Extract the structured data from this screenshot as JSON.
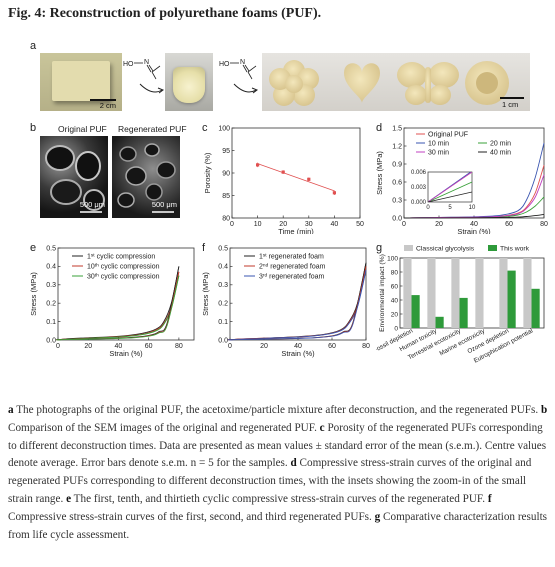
{
  "figure_title": "Fig. 4: Reconstruction of polyurethane foams (PUF).",
  "panel_labels": [
    "a",
    "b",
    "c",
    "d",
    "e",
    "f",
    "g"
  ],
  "panel_a": {
    "scale_bar_left": "2 cm",
    "scale_bar_right": "1 cm",
    "reagent": "HO",
    "reagent_atom": "N"
  },
  "panel_b": {
    "left_title": "Original PUF",
    "right_title": "Regenerated PUF",
    "left_scale": "500 μm",
    "right_scale": "500 μm"
  },
  "caption": [
    {
      "label": "a",
      "text": " The photographs of the original PUF, the acetoxime/particle mixture after deconstruction, and the regenerated PUFs. "
    },
    {
      "label": "b",
      "text": " Comparison of the SEM images of the original and regenerated PUF. "
    },
    {
      "label": "c",
      "text": " Porosity of the regenerated PUFs corresponding to different deconstruction times. Data are presented as mean values ± standard error of the mean (s.e.m.). Centre values denote average. Error bars denote s.e.m. n = 5 for the samples. "
    },
    {
      "label": "d",
      "text": " Compressive stress-strain curves of the original and regenerated PUFs corresponding to different deconstruction times, with the insets showing the zoom-in of the small strain range. "
    },
    {
      "label": "e",
      "text": " The first, tenth, and thirtieth cyclic compressive stress-strain curves of the regenerated PUF. "
    },
    {
      "label": "f",
      "text": " Compressive stress-strain curves of the first, second, and third regenerated PUFs. "
    },
    {
      "label": "g",
      "text": " Comparative characterization results from life cycle assessment."
    }
  ],
  "chart_data": [
    {
      "panel": "c",
      "type": "scatter",
      "xlabel": "Time (min)",
      "ylabel": "Porosity (%)",
      "xlim": [
        0,
        50
      ],
      "ylim": [
        80,
        100
      ],
      "xticks": [
        0,
        10,
        20,
        30,
        40,
        50
      ],
      "yticks": [
        80,
        85,
        90,
        95,
        100
      ],
      "x": [
        10,
        20,
        30,
        40
      ],
      "y": [
        91.8,
        90.2,
        88.6,
        85.6
      ],
      "err": [
        0.5,
        0.4,
        0.4,
        0.5
      ],
      "color": "#e05050"
    },
    {
      "panel": "d",
      "type": "line",
      "xlabel": "Strain (%)",
      "ylabel": "Stress (MPa)",
      "xlim": [
        0,
        80
      ],
      "ylim": [
        0,
        1.5
      ],
      "xticks": [
        0,
        20,
        40,
        60,
        80
      ],
      "yticks": [
        0.0,
        0.3,
        0.6,
        0.9,
        1.2,
        1.5
      ],
      "legend": [
        "Original PUF",
        "10 min",
        "20 min",
        "30 min",
        "40 min"
      ],
      "series": [
        {
          "name": "Original PUF",
          "color": "#e05050",
          "x": [
            0,
            5,
            20,
            40,
            55,
            65,
            70,
            75,
            80
          ],
          "y": [
            0,
            0.003,
            0.008,
            0.015,
            0.03,
            0.08,
            0.18,
            0.42,
            0.88
          ]
        },
        {
          "name": "10 min",
          "color": "#3a55b0",
          "x": [
            0,
            5,
            20,
            40,
            55,
            65,
            70,
            75,
            80
          ],
          "y": [
            0,
            0.004,
            0.01,
            0.02,
            0.045,
            0.12,
            0.3,
            0.68,
            1.25
          ]
        },
        {
          "name": "20 min",
          "color": "#3aa03a",
          "x": [
            0,
            5,
            20,
            40,
            55,
            65,
            70,
            75,
            80
          ],
          "y": [
            0,
            0.002,
            0.006,
            0.01,
            0.02,
            0.05,
            0.1,
            0.2,
            0.35
          ]
        },
        {
          "name": "30 min",
          "color": "#c040c0",
          "x": [
            0,
            5,
            20,
            40,
            55,
            65,
            70,
            75,
            80
          ],
          "y": [
            0,
            0.003,
            0.008,
            0.014,
            0.028,
            0.07,
            0.16,
            0.35,
            0.72
          ]
        },
        {
          "name": "40 min",
          "color": "#222222",
          "x": [
            0,
            5,
            20,
            40,
            55,
            65,
            70,
            75,
            80
          ],
          "y": [
            0,
            0.001,
            0.002,
            0.004,
            0.008,
            0.015,
            0.025,
            0.04,
            0.06
          ]
        }
      ],
      "inset": {
        "xlim": [
          0,
          10
        ],
        "ylim": [
          0,
          0.006
        ],
        "xticks": [
          0,
          5,
          10
        ],
        "yticks": [
          "0.000",
          "0.003",
          "0.006"
        ]
      }
    },
    {
      "panel": "e",
      "type": "line",
      "xlabel": "Strain (%)",
      "ylabel": "Stress (MPa)",
      "xlim": [
        0,
        90
      ],
      "ylim": [
        0,
        0.5
      ],
      "xticks": [
        0,
        20,
        40,
        60,
        80
      ],
      "yticks": [
        0.0,
        0.1,
        0.2,
        0.3,
        0.4,
        0.5
      ],
      "legend_base": [
        "1",
        "10",
        "30"
      ],
      "legend_sup": [
        "st",
        "th",
        "th"
      ],
      "legend_suffix": " cyclic compression",
      "series": [
        {
          "name": "1st cyclic compression",
          "color": "#222222",
          "x": [
            0,
            5,
            20,
            40,
            55,
            65,
            70,
            75,
            80
          ],
          "y": [
            0,
            0.006,
            0.012,
            0.02,
            0.035,
            0.06,
            0.1,
            0.2,
            0.4
          ]
        },
        {
          "name": "10th cyclic compression",
          "color": "#c0392b",
          "x": [
            0,
            5,
            20,
            40,
            55,
            65,
            70,
            75,
            80
          ],
          "y": [
            0,
            0.005,
            0.01,
            0.018,
            0.03,
            0.055,
            0.09,
            0.18,
            0.37
          ]
        },
        {
          "name": "30th cyclic compression",
          "color": "#3aa03a",
          "x": [
            0,
            5,
            20,
            40,
            55,
            65,
            70,
            75,
            80
          ],
          "y": [
            0,
            0.004,
            0.009,
            0.016,
            0.028,
            0.05,
            0.085,
            0.17,
            0.35
          ]
        }
      ]
    },
    {
      "panel": "f",
      "type": "line",
      "xlabel": "Strain (%)",
      "ylabel": "Stress (MPa)",
      "xlim": [
        0,
        80
      ],
      "ylim": [
        0,
        0.5
      ],
      "xticks": [
        0,
        20,
        40,
        60,
        80
      ],
      "yticks": [
        0.0,
        0.1,
        0.2,
        0.3,
        0.4,
        0.5
      ],
      "legend_base": [
        "1",
        "2",
        "3"
      ],
      "legend_sup": [
        "st",
        "nd",
        "rd"
      ],
      "legend_suffix": " regenerated foam",
      "series": [
        {
          "name": "1st regenerated foam",
          "color": "#222222",
          "x": [
            0,
            5,
            20,
            40,
            55,
            65,
            70,
            75,
            80
          ],
          "y": [
            0,
            0.005,
            0.01,
            0.018,
            0.03,
            0.055,
            0.1,
            0.2,
            0.42
          ]
        },
        {
          "name": "2nd regenerated foam",
          "color": "#c0392b",
          "x": [
            0,
            5,
            20,
            40,
            55,
            65,
            70,
            75,
            80
          ],
          "y": [
            0,
            0.005,
            0.01,
            0.017,
            0.029,
            0.052,
            0.095,
            0.19,
            0.4
          ]
        },
        {
          "name": "3rd regenerated foam",
          "color": "#3a55b0",
          "x": [
            0,
            5,
            20,
            40,
            55,
            65,
            70,
            75,
            80
          ],
          "y": [
            0,
            0.004,
            0.009,
            0.016,
            0.028,
            0.05,
            0.09,
            0.18,
            0.38
          ]
        }
      ]
    },
    {
      "panel": "g",
      "type": "bar",
      "ylabel": "Environmental impact (%)",
      "ylim": [
        0,
        100
      ],
      "yticks": [
        0,
        20,
        40,
        60,
        80,
        100
      ],
      "categories": [
        "Fossil depletion",
        "Human toxicity",
        "Terrestrial ecotoxicity",
        "Marine ecotoxicity",
        "Ozone depletion",
        "Eutrophication potential"
      ],
      "series": [
        {
          "name": "Classical glycolysis",
          "color": "#c8c8c8",
          "values": [
            100,
            100,
            100,
            100,
            100,
            100
          ]
        },
        {
          "name": "This work",
          "color": "#2e9a3a",
          "values": [
            47,
            16,
            43,
            0,
            82,
            56
          ]
        }
      ]
    }
  ]
}
